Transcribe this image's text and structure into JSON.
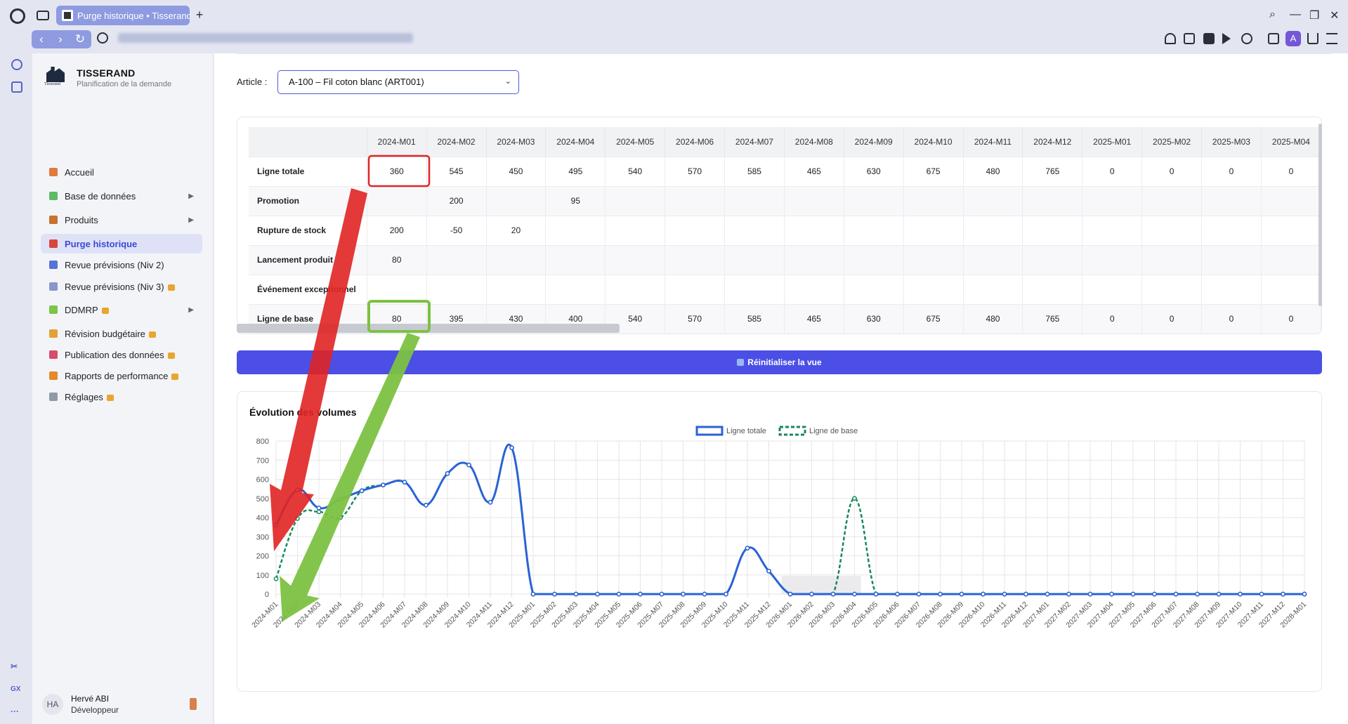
{
  "browser": {
    "tab_title": "Purge historique • Tisserand",
    "new_tab": "+",
    "controls": {
      "search": "⌕",
      "minimize": "—",
      "restore": "❐",
      "close": "✕"
    },
    "nav": {
      "back": "‹",
      "forward": "›",
      "reload": "↻"
    },
    "profile_initial": "A"
  },
  "opera_side": {
    "bottom_1": "✂",
    "bottom_2": "GX",
    "bottom_3": "···"
  },
  "app": {
    "brand_name": "TISSERAND",
    "brand_caption": "Tisserand",
    "brand_sub": "Planification de la demande",
    "menu": [
      {
        "label": "Accueil",
        "color": "#e07a3a",
        "locked": false,
        "submenu": false
      },
      {
        "label": "Base de données",
        "color": "#5dbb63",
        "locked": false,
        "submenu": true
      },
      {
        "label": "Produits",
        "color": "#c9712e",
        "locked": false,
        "submenu": true
      },
      {
        "label": "Purge historique",
        "color": "#d9463b",
        "locked": false,
        "submenu": false,
        "active": true
      },
      {
        "label": "Revue prévisions (Niv 2)",
        "color": "#5871d6",
        "locked": false,
        "submenu": false
      },
      {
        "label": "Revue prévisions (Niv 3)",
        "color": "#8a96c9",
        "locked": true,
        "submenu": false
      },
      {
        "label": "DDMRP",
        "color": "#7ac54a",
        "locked": true,
        "submenu": true
      },
      {
        "label": "Révision budgétaire",
        "color": "#e3a236",
        "locked": true,
        "submenu": false
      },
      {
        "label": "Publication des données",
        "color": "#d84b6a",
        "locked": true,
        "submenu": false
      },
      {
        "label": "Rapports de performance",
        "color": "#e38a2c",
        "locked": true,
        "submenu": false
      },
      {
        "label": "Réglages",
        "color": "#8e9aa8",
        "locked": true,
        "submenu": false
      }
    ],
    "user": {
      "initials": "HA",
      "name": "Hervé ABI",
      "role": "Développeur"
    }
  },
  "main": {
    "article_label": "Article :",
    "article_value": "A-100 – Fil coton blanc (ART001)",
    "table": {
      "columns": [
        "2024-M01",
        "2024-M02",
        "2024-M03",
        "2024-M04",
        "2024-M05",
        "2024-M06",
        "2024-M07",
        "2024-M08",
        "2024-M09",
        "2024-M10",
        "2024-M11",
        "2024-M12",
        "2025-M01",
        "2025-M02",
        "2025-M03",
        "2025-M04"
      ],
      "rows": [
        {
          "label": "Ligne totale",
          "values": [
            "360",
            "545",
            "450",
            "495",
            "540",
            "570",
            "585",
            "465",
            "630",
            "675",
            "480",
            "765",
            "0",
            "0",
            "0",
            "0"
          ]
        },
        {
          "label": "Promotion",
          "values": [
            "",
            "200",
            "",
            "95",
            "",
            "",
            "",
            "",
            "",
            "",
            "",
            "",
            "",
            "",
            "",
            ""
          ]
        },
        {
          "label": "Rupture de stock",
          "values": [
            "200",
            "-50",
            "20",
            "",
            "",
            "",
            "",
            "",
            "",
            "",
            "",
            "",
            "",
            "",
            "",
            ""
          ]
        },
        {
          "label": "Lancement produit",
          "values": [
            "80",
            "",
            "",
            "",
            "",
            "",
            "",
            "",
            "",
            "",
            "",
            "",
            "",
            "",
            "",
            ""
          ]
        },
        {
          "label": "Événement exceptionnel",
          "values": [
            "",
            "",
            "",
            "",
            "",
            "",
            "",
            "",
            "",
            "",
            "",
            "",
            "",
            "",
            "",
            ""
          ]
        },
        {
          "label": "Ligne de base",
          "values": [
            "80",
            "395",
            "430",
            "400",
            "540",
            "570",
            "585",
            "465",
            "630",
            "675",
            "480",
            "765",
            "0",
            "0",
            "0",
            "0"
          ]
        }
      ]
    },
    "reset_label": "Réinitialiser la vue",
    "chart_title": "Évolution des volumes"
  },
  "chart_data": {
    "type": "line",
    "x": [
      "2024-M01",
      "2024-M02",
      "2024-M03",
      "2024-M04",
      "2024-M05",
      "2024-M06",
      "2024-M07",
      "2024-M08",
      "2024-M09",
      "2024-M10",
      "2024-M11",
      "2024-M12",
      "2025-M01",
      "2025-M02",
      "2025-M03",
      "2025-M04",
      "2025-M05",
      "2025-M06",
      "2025-M07",
      "2025-M08",
      "2025-M09",
      "2025-M10",
      "2025-M11",
      "2025-M12",
      "2026-M01",
      "2026-M02",
      "2026-M03",
      "2026-M04",
      "2026-M05",
      "2026-M06",
      "2026-M07",
      "2026-M08",
      "2026-M09",
      "2026-M10",
      "2026-M11",
      "2026-M12",
      "2027-M01",
      "2027-M02",
      "2027-M03",
      "2027-M04",
      "2027-M05",
      "2027-M06",
      "2027-M07",
      "2027-M08",
      "2027-M09",
      "2027-M10",
      "2027-M11",
      "2027-M12",
      "2028-M01"
    ],
    "series": [
      {
        "name": "Ligne totale",
        "color": "#2a62d6",
        "dash": false,
        "values": [
          360,
          545,
          450,
          495,
          540,
          570,
          585,
          465,
          630,
          675,
          480,
          765,
          0,
          0,
          0,
          0,
          0,
          0,
          0,
          0,
          0,
          0,
          240,
          120,
          0,
          0,
          0,
          0,
          0,
          0,
          0,
          0,
          0,
          0,
          0,
          0,
          0,
          0,
          0,
          0,
          0,
          0,
          0,
          0,
          0,
          0,
          0,
          0,
          0
        ]
      },
      {
        "name": "Ligne de base",
        "color": "#168a5a",
        "dash": true,
        "values": [
          80,
          395,
          430,
          400,
          540,
          570,
          585,
          465,
          630,
          675,
          480,
          765,
          0,
          0,
          0,
          0,
          0,
          0,
          0,
          0,
          0,
          0,
          240,
          120,
          0,
          0,
          0,
          500,
          0,
          0,
          0,
          0,
          0,
          0,
          0,
          0,
          0,
          0,
          0,
          0,
          0,
          0,
          0,
          0,
          0,
          0,
          0,
          0,
          0
        ]
      }
    ],
    "ylim": [
      0,
      800
    ],
    "yticks": [
      0,
      100,
      200,
      300,
      400,
      500,
      600,
      700,
      800
    ],
    "grid": true,
    "legend": "top-center"
  },
  "annotations": {
    "highlight_red": "#e02424",
    "highlight_green": "#7cc242"
  }
}
